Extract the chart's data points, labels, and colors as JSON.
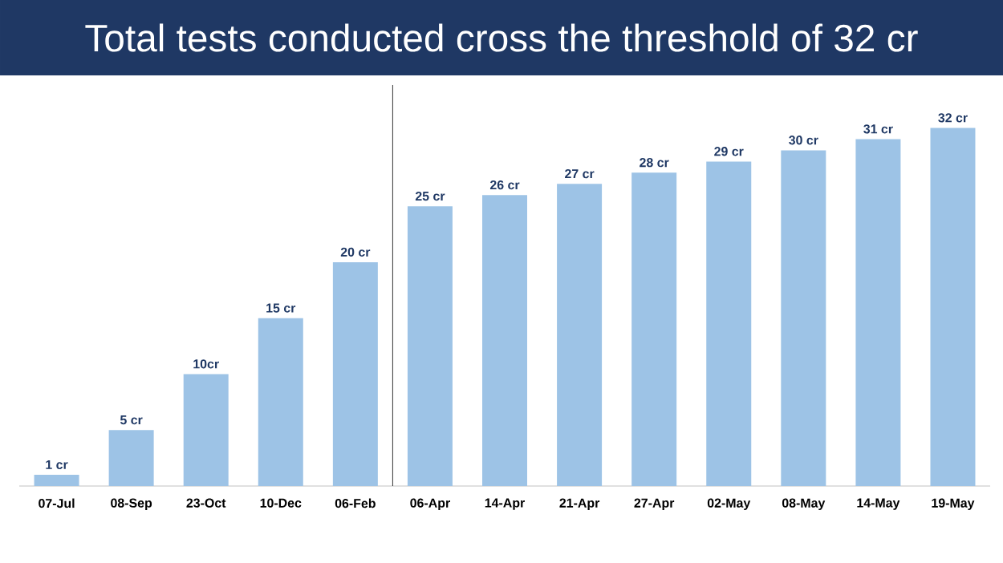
{
  "chart_data": {
    "type": "bar",
    "title": "Total tests conducted cross the threshold of 32 cr",
    "categories": [
      "07-Jul",
      "08-Sep",
      "23-Oct",
      "10-Dec",
      "06-Feb",
      "06-Apr",
      "14-Apr",
      "21-Apr",
      "27-Apr",
      "02-May",
      "08-May",
      "14-May",
      "19-May"
    ],
    "values": [
      1,
      5,
      10,
      15,
      20,
      25,
      26,
      27,
      28,
      29,
      30,
      31,
      32
    ],
    "value_labels": [
      "1 cr",
      "5 cr",
      "10cr",
      "15 cr",
      "20 cr",
      "25 cr",
      "26 cr",
      "27 cr",
      "28 cr",
      "29 cr",
      "30 cr",
      "31 cr",
      "32 cr"
    ],
    "color": "#9dc3e6"
  }
}
